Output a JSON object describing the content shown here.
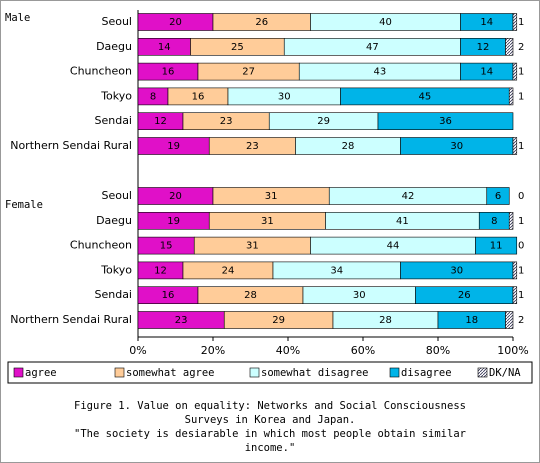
{
  "chart_data": {
    "type": "stacked-bar-horizontal",
    "series": [
      {
        "name": "agree",
        "color": "#e010c8"
      },
      {
        "name": "somewhat agree",
        "color": "#ffcc99"
      },
      {
        "name": "somewhat disagree",
        "color": "#ccffff"
      },
      {
        "name": "disagree",
        "color": "#00b4e8"
      },
      {
        "name": "DK/NA",
        "color": "#ffffff",
        "hatch": true
      }
    ],
    "panels": [
      {
        "title": "Male",
        "categories": [
          "Seoul",
          "Daegu",
          "Chuncheon",
          "Tokyo",
          "Sendai",
          "Northern Sendai Rural"
        ],
        "values": [
          [
            20,
            14,
            16,
            8,
            12,
            19
          ],
          [
            26,
            25,
            27,
            16,
            23,
            23
          ],
          [
            40,
            47,
            43,
            30,
            29,
            28
          ],
          [
            14,
            12,
            14,
            45,
            36,
            30
          ],
          [
            1,
            2,
            1,
            1,
            null,
            1
          ]
        ]
      },
      {
        "title": "Female",
        "categories": [
          "Seoul",
          "Daegu",
          "Chuncheon",
          "Tokyo",
          "Sendai",
          "Northern Sendai Rural"
        ],
        "values": [
          [
            20,
            19,
            15,
            12,
            16,
            23
          ],
          [
            31,
            31,
            31,
            24,
            28,
            29
          ],
          [
            42,
            41,
            44,
            34,
            30,
            28
          ],
          [
            6,
            8,
            11,
            30,
            26,
            18
          ],
          [
            0,
            1,
            0,
            1,
            1,
            2
          ]
        ]
      }
    ],
    "xlim": [
      0,
      100
    ],
    "xticks": [
      {
        "value": 0,
        "label": "0%"
      },
      {
        "value": 20,
        "label": "20%"
      },
      {
        "value": 40,
        "label": "40%"
      },
      {
        "value": 60,
        "label": "60%"
      },
      {
        "value": 80,
        "label": "80%"
      },
      {
        "value": 100,
        "label": "100%"
      }
    ],
    "caption": [
      "Figure 1. Value on equality:  Networks and Social Consciousness",
      "Surveys in Korea and Japan.",
      "\"The society is desiarable in which most people obtain similar",
      "income.\""
    ]
  }
}
